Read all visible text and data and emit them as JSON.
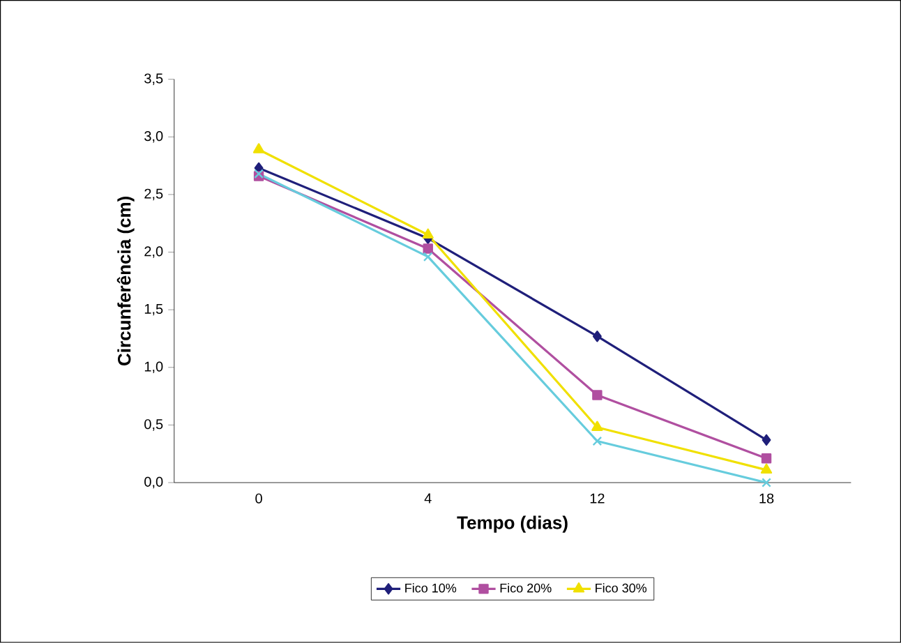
{
  "chart_data": {
    "type": "line",
    "xlabel": "Tempo (dias)",
    "ylabel": "Circunferência (cm)",
    "categories": [
      "0",
      "4",
      "12",
      "18"
    ],
    "ylim": [
      0,
      3.5
    ],
    "yticks": [
      {
        "value": 0,
        "label": "0,0"
      },
      {
        "value": 0.5,
        "label": "0,5"
      },
      {
        "value": 1,
        "label": "1,0"
      },
      {
        "value": 1.5,
        "label": "1,5"
      },
      {
        "value": 2,
        "label": "2,0"
      },
      {
        "value": 2.5,
        "label": "2,5"
      },
      {
        "value": 3,
        "label": "3,0"
      },
      {
        "value": 3.5,
        "label": "3,5"
      }
    ],
    "grid": false,
    "legend": "bottom",
    "line_style": "solid",
    "series": [
      {
        "name": "Fico 10%",
        "color": "#1f1f7a",
        "marker": "diamond",
        "values": [
          2.73,
          2.12,
          1.27,
          0.37
        ]
      },
      {
        "name": "Fico 20%",
        "color": "#b04fa0",
        "marker": "square",
        "values": [
          2.66,
          2.03,
          0.76,
          0.21
        ]
      },
      {
        "name": "Fico 30%",
        "color": "#f0e000",
        "marker": "triangle",
        "values": [
          2.89,
          2.15,
          0.48,
          0.11
        ]
      },
      {
        "color": "#66ccdd",
        "marker": "cross",
        "values": [
          2.68,
          1.96,
          0.36,
          0.0
        ]
      }
    ]
  }
}
